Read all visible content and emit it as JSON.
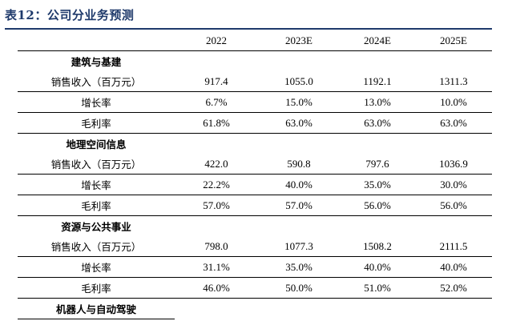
{
  "title": "表12：公司分业务预测",
  "columns": [
    "",
    "2022",
    "2023E",
    "2024E",
    "2025E"
  ],
  "sections": [
    {
      "name": "建筑与基建",
      "rows": [
        {
          "label": "销售收入（百万元）",
          "values": [
            "917.4",
            "1055.0",
            "1192.1",
            "1311.3"
          ]
        },
        {
          "label": "增长率",
          "values": [
            "6.7%",
            "15.0%",
            "13.0%",
            "10.0%"
          ]
        },
        {
          "label": "毛利率",
          "values": [
            "61.8%",
            "63.0%",
            "63.0%",
            "63.0%"
          ]
        }
      ]
    },
    {
      "name": "地理空间信息",
      "rows": [
        {
          "label": "销售收入（百万元）",
          "values": [
            "422.0",
            "590.8",
            "797.6",
            "1036.9"
          ]
        },
        {
          "label": "增长率",
          "values": [
            "22.2%",
            "40.0%",
            "35.0%",
            "30.0%"
          ]
        },
        {
          "label": "毛利率",
          "values": [
            "57.0%",
            "57.0%",
            "56.0%",
            "56.0%"
          ]
        }
      ]
    },
    {
      "name": "资源与公共事业",
      "rows": [
        {
          "label": "销售收入（百万元）",
          "values": [
            "798.0",
            "1077.3",
            "1508.2",
            "2111.5"
          ]
        },
        {
          "label": "增长率",
          "values": [
            "31.1%",
            "35.0%",
            "40.0%",
            "40.0%"
          ]
        },
        {
          "label": "毛利率",
          "values": [
            "46.0%",
            "50.0%",
            "51.0%",
            "52.0%"
          ]
        }
      ]
    },
    {
      "name": "机器人与自动驾驶",
      "rows": []
    }
  ]
}
